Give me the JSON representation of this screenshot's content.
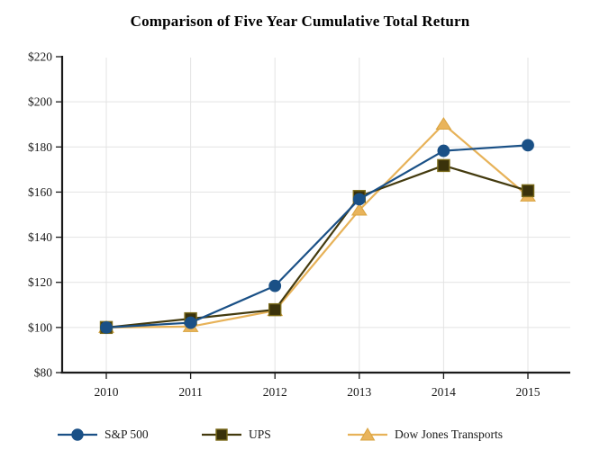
{
  "title": "Comparison of Five Year Cumulative Total Return",
  "chart_data": {
    "type": "line",
    "categories": [
      "2010",
      "2011",
      "2012",
      "2013",
      "2014",
      "2015"
    ],
    "series": [
      {
        "name": "S&P 500",
        "marker": "circle",
        "color": "#1A5086",
        "marker_fill": "#1A5086",
        "marker_stroke": "#1A5086",
        "values": [
          100.0,
          102.11,
          118.45,
          156.82,
          178.29,
          180.75
        ]
      },
      {
        "name": "UPS",
        "marker": "square",
        "color": "#433A0E",
        "marker_fill": "#3A320B",
        "marker_stroke": "#7A6A1A",
        "values": [
          100.0,
          103.88,
          107.87,
          158.07,
          171.77,
          160.61
        ]
      },
      {
        "name": "Dow Jones Transports",
        "marker": "triangle",
        "color": "#E7B258",
        "marker_fill": "#E9B45B",
        "marker_stroke": "#D9A33F",
        "values": [
          100.0,
          100.38,
          107.49,
          152.01,
          190.08,
          158.23
        ]
      }
    ],
    "ylim": [
      80,
      220
    ],
    "y_ticks": [
      {
        "value": 80,
        "label": "$80"
      },
      {
        "value": 100,
        "label": "$100"
      },
      {
        "value": 120,
        "label": "$120"
      },
      {
        "value": 140,
        "label": "$140"
      },
      {
        "value": 160,
        "label": "$160"
      },
      {
        "value": 180,
        "label": "$180"
      },
      {
        "value": 200,
        "label": "$200"
      },
      {
        "value": 220,
        "label": "$220"
      }
    ],
    "grid": true,
    "legend_position": "bottom"
  },
  "colors": {
    "axis": "#1a1a1a",
    "grid": "#e3e3e3",
    "tick_text": "#1a1a1a",
    "background": "#ffffff"
  }
}
